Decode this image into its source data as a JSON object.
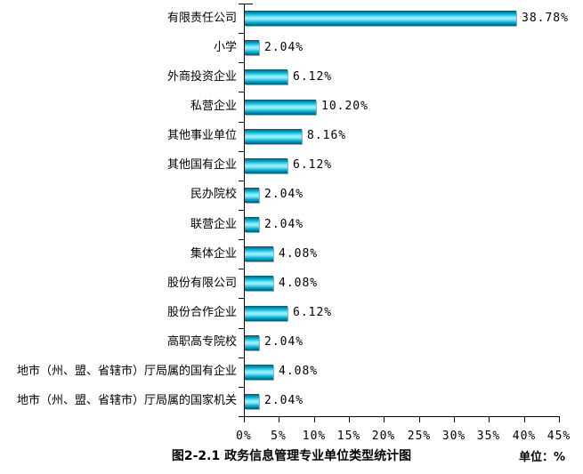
{
  "page": {
    "background": "#ffffff",
    "axis_color": "#000000",
    "text_color": "#000000"
  },
  "chart_data": {
    "type": "bar",
    "orientation": "horizontal",
    "title": "图2-2.1 政务信息管理专业单位类型统计图",
    "unit_label": "单位：%",
    "categories": [
      "有限责任公司",
      "小学",
      "外商投资企业",
      "私营企业",
      "其他事业单位",
      "其他国有企业",
      "民办院校",
      "联营企业",
      "集体企业",
      "股份有限公司",
      "股份合作企业",
      "高职高专院校",
      "地市（州、盟、省辖市）厅局属的国有企业",
      "地市（州、盟、省辖市）厅局属的国家机关"
    ],
    "values": [
      38.78,
      2.04,
      6.12,
      10.2,
      8.16,
      6.12,
      2.04,
      2.04,
      4.08,
      4.08,
      6.12,
      2.04,
      4.08,
      2.04
    ],
    "value_labels": [
      "38.78%",
      "2.04%",
      "6.12%",
      "10.20%",
      "8.16%",
      "6.12%",
      "2.04%",
      "2.04%",
      "4.08%",
      "4.08%",
      "6.12%",
      "2.04%",
      "4.08%",
      "2.04%"
    ],
    "x_ticks": [
      "0%",
      "5%",
      "10%",
      "15%",
      "20%",
      "25%",
      "30%",
      "35%",
      "40%",
      "45%"
    ],
    "xlim": [
      0,
      45
    ],
    "grid": false,
    "legend": false,
    "bar_colors": {
      "edge": "#00566f",
      "mid": "#00a9cf",
      "highlight": "#90f0fe"
    }
  }
}
